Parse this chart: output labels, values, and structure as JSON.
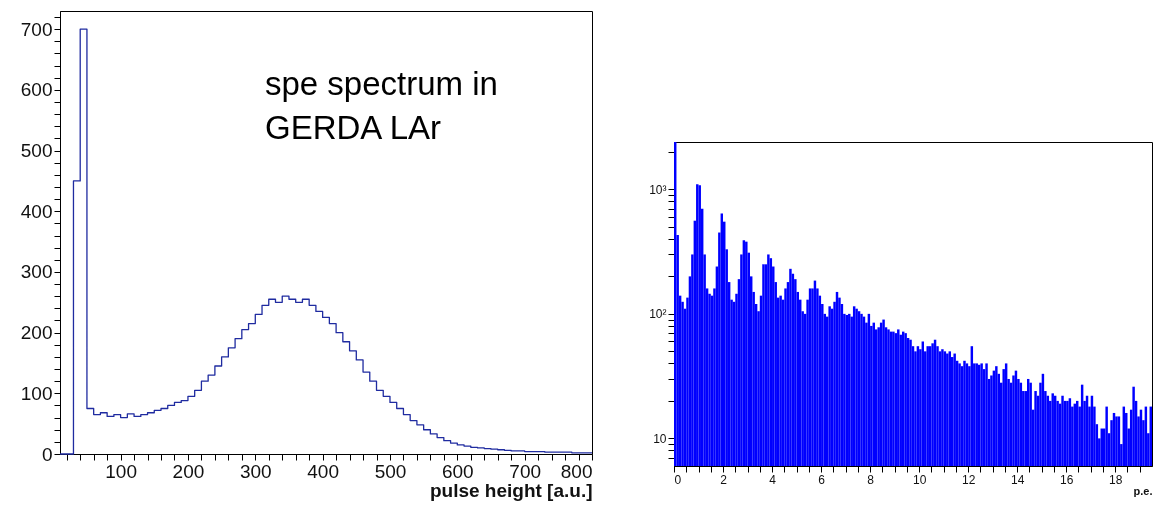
{
  "chart_data": [
    {
      "type": "histogram",
      "xlabel": "pulse height [a.u.]",
      "annotations": [
        "spe spectrum in\nGERDA LAr"
      ],
      "color": "#1f2ba0",
      "line_style": "solid",
      "bins": [
        10,
        20,
        30,
        40,
        50,
        60,
        70,
        80,
        90,
        100,
        110,
        120,
        130,
        140,
        150,
        160,
        170,
        180,
        190,
        200,
        210,
        220,
        230,
        240,
        250,
        260,
        270,
        280,
        290,
        300,
        310,
        320,
        330,
        340,
        350,
        360,
        370,
        380,
        390,
        400,
        410,
        420,
        430,
        440,
        450,
        460,
        470,
        480,
        490,
        500,
        510,
        520,
        530,
        540,
        550,
        560,
        570,
        580,
        590,
        600,
        610,
        620,
        630,
        640,
        650,
        660,
        670,
        680,
        690,
        700,
        710,
        720,
        730,
        740,
        750,
        760,
        770,
        780,
        790,
        800
      ],
      "values": [
        0,
        0,
        450,
        700,
        75,
        65,
        68,
        62,
        65,
        60,
        66,
        62,
        65,
        68,
        72,
        75,
        80,
        85,
        88,
        95,
        105,
        120,
        130,
        145,
        160,
        175,
        190,
        205,
        215,
        230,
        245,
        255,
        250,
        260,
        255,
        250,
        255,
        245,
        235,
        225,
        215,
        200,
        185,
        170,
        155,
        135,
        120,
        105,
        95,
        85,
        75,
        65,
        55,
        48,
        40,
        33,
        27,
        22,
        18,
        15,
        13,
        11,
        10,
        9,
        8,
        7,
        6,
        5,
        5,
        4,
        4,
        4,
        3,
        3,
        3,
        3,
        2,
        2,
        2
      ],
      "xlim": [
        10,
        800
      ],
      "ylim": [
        0,
        730
      ],
      "xticks": [
        {
          "value": 20,
          "label": null
        },
        {
          "value": 40,
          "label": null
        },
        {
          "value": 60,
          "label": null
        },
        {
          "value": 80,
          "label": null
        },
        100,
        {
          "value": 120,
          "label": null
        },
        {
          "value": 140,
          "label": null
        },
        {
          "value": 160,
          "label": null
        },
        {
          "value": 180,
          "label": null
        },
        200,
        {
          "value": 220,
          "label": null
        },
        {
          "value": 240,
          "label": null
        },
        {
          "value": 260,
          "label": null
        },
        {
          "value": 280,
          "label": null
        },
        300,
        {
          "value": 320,
          "label": null
        },
        {
          "value": 340,
          "label": null
        },
        {
          "value": 360,
          "label": null
        },
        {
          "value": 380,
          "label": null
        },
        400,
        {
          "value": 420,
          "label": null
        },
        {
          "value": 440,
          "label": null
        },
        {
          "value": 460,
          "label": null
        },
        {
          "value": 480,
          "label": null
        },
        500,
        {
          "value": 520,
          "label": null
        },
        {
          "value": 540,
          "label": null
        },
        {
          "value": 560,
          "label": null
        },
        {
          "value": 580,
          "label": null
        },
        600,
        {
          "value": 620,
          "label": null
        },
        {
          "value": 640,
          "label": null
        },
        {
          "value": 660,
          "label": null
        },
        {
          "value": 680,
          "label": null
        },
        700,
        {
          "value": 720,
          "label": null
        },
        {
          "value": 740,
          "label": null
        },
        {
          "value": 760,
          "label": null
        },
        {
          "value": 780,
          "label": null
        },
        800
      ],
      "yticks": [
        0,
        {
          "value": 20,
          "label": null
        },
        {
          "value": 40,
          "label": null
        },
        {
          "value": 60,
          "label": null
        },
        {
          "value": 80,
          "label": null
        },
        100,
        {
          "value": 120,
          "label": null
        },
        {
          "value": 140,
          "label": null
        },
        {
          "value": 160,
          "label": null
        },
        {
          "value": 180,
          "label": null
        },
        200,
        {
          "value": 220,
          "label": null
        },
        {
          "value": 240,
          "label": null
        },
        {
          "value": 260,
          "label": null
        },
        {
          "value": 280,
          "label": null
        },
        300,
        {
          "value": 320,
          "label": null
        },
        {
          "value": 340,
          "label": null
        },
        {
          "value": 360,
          "label": null
        },
        {
          "value": 380,
          "label": null
        },
        400,
        {
          "value": 420,
          "label": null
        },
        {
          "value": 440,
          "label": null
        },
        {
          "value": 460,
          "label": null
        },
        {
          "value": 480,
          "label": null
        },
        500,
        {
          "value": 520,
          "label": null
        },
        {
          "value": 540,
          "label": null
        },
        {
          "value": 560,
          "label": null
        },
        {
          "value": 580,
          "label": null
        },
        600,
        {
          "value": 620,
          "label": null
        },
        {
          "value": 640,
          "label": null
        },
        {
          "value": 660,
          "label": null
        },
        {
          "value": 680,
          "label": null
        },
        700,
        {
          "value": 720,
          "label": null
        }
      ]
    },
    {
      "type": "histogram",
      "xlabel": "p.e.",
      "color": "#0000ff",
      "log": "y",
      "bins": [
        0,
        0.1,
        0.2,
        0.3,
        0.4,
        0.5,
        0.6,
        0.7,
        0.8,
        0.9,
        1,
        1.1,
        1.2,
        1.3,
        1.4,
        1.5,
        1.6,
        1.7,
        1.8,
        1.9,
        2,
        2.1,
        2.2,
        2.3,
        2.4,
        2.5,
        2.6,
        2.7,
        2.8,
        2.9,
        3,
        3.1,
        3.2,
        3.3,
        3.4,
        3.5,
        3.6,
        3.7,
        3.8,
        3.9,
        4,
        4.1,
        4.2,
        4.3,
        4.4,
        4.5,
        4.6,
        4.7,
        4.8,
        4.9,
        5,
        5.1,
        5.2,
        5.3,
        5.4,
        5.5,
        5.6,
        5.7,
        5.8,
        5.9,
        6,
        6.1,
        6.2,
        6.3,
        6.4,
        6.5,
        6.6,
        6.7,
        6.8,
        6.9,
        7,
        7.1,
        7.2,
        7.3,
        7.4,
        7.5,
        7.6,
        7.7,
        7.8,
        7.9,
        8,
        8.1,
        8.2,
        8.3,
        8.4,
        8.5,
        8.6,
        8.7,
        8.8,
        8.9,
        9,
        9.1,
        9.2,
        9.3,
        9.4,
        9.5,
        9.6,
        9.7,
        9.8,
        9.9,
        10,
        10.1,
        10.2,
        10.3,
        10.4,
        10.5,
        10.6,
        10.7,
        10.8,
        10.9,
        11,
        11.1,
        11.2,
        11.3,
        11.4,
        11.5,
        11.6,
        11.7,
        11.8,
        11.9,
        12,
        12.1,
        12.2,
        12.3,
        12.4,
        12.5,
        12.6,
        12.7,
        12.8,
        12.9,
        13,
        13.1,
        13.2,
        13.3,
        13.4,
        13.5,
        13.6,
        13.7,
        13.8,
        13.9,
        14,
        14.1,
        14.2,
        14.3,
        14.4,
        14.5,
        14.6,
        14.7,
        14.8,
        14.9,
        15,
        15.1,
        15.2,
        15.3,
        15.4,
        15.5,
        15.6,
        15.7,
        15.8,
        15.9,
        16,
        16.1,
        16.2,
        16.3,
        16.4,
        16.5,
        16.6,
        16.7,
        16.8,
        16.9,
        17,
        17.1,
        17.2,
        17.3,
        17.4,
        17.5,
        17.6,
        17.7,
        17.8,
        17.9,
        18,
        18.1,
        18.2,
        18.3,
        18.4,
        18.5,
        18.6,
        18.7,
        18.8,
        18.9,
        19,
        19.1,
        19.2,
        19.3,
        19.4,
        19.5
      ],
      "values": [
        2400,
        430,
        140,
        125,
        110,
        135,
        200,
        300,
        560,
        1100,
        1080,
        700,
        300,
        160,
        145,
        140,
        160,
        240,
        450,
        640,
        550,
        330,
        180,
        130,
        125,
        145,
        190,
        300,
        390,
        380,
        310,
        200,
        150,
        120,
        105,
        140,
        250,
        250,
        300,
        280,
        240,
        180,
        135,
        140,
        130,
        160,
        180,
        230,
        210,
        190,
        150,
        130,
        105,
        100,
        130,
        160,
        160,
        185,
        160,
        140,
        120,
        100,
        95,
        115,
        110,
        125,
        150,
        135,
        120,
        100,
        98,
        100,
        95,
        115,
        110,
        105,
        100,
        95,
        85,
        100,
        80,
        85,
        75,
        78,
        85,
        90,
        78,
        75,
        72,
        72,
        70,
        75,
        68,
        72,
        70,
        64,
        62,
        55,
        50,
        55,
        52,
        60,
        50,
        55,
        55,
        58,
        62,
        55,
        50,
        52,
        50,
        48,
        50,
        45,
        48,
        42,
        40,
        38,
        42,
        40,
        38,
        55,
        40,
        40,
        39,
        40,
        36,
        40,
        30,
        32,
        35,
        38,
        33,
        28,
        36,
        40,
        30,
        28,
        32,
        35,
        30,
        28,
        24,
        24,
        30,
        28,
        17,
        24,
        22,
        28,
        33,
        24,
        22,
        20,
        23,
        22,
        20,
        19,
        22,
        20,
        20,
        21,
        18,
        19,
        20,
        18,
        27,
        20,
        22,
        18,
        22,
        18,
        13,
        10,
        12,
        12,
        18,
        11,
        14,
        16,
        15,
        15,
        9,
        18,
        16,
        12,
        17,
        26,
        20,
        15,
        17,
        14,
        18,
        11,
        18
      ],
      "xlim": [
        0,
        19.5
      ],
      "ylim": [
        6,
        2400
      ],
      "xticks": [
        0,
        {
          "value": 0.5,
          "label": null
        },
        {
          "value": 1,
          "label": null
        },
        {
          "value": 1.5,
          "label": null
        },
        2,
        {
          "value": 2.5,
          "label": null
        },
        {
          "value": 3,
          "label": null
        },
        {
          "value": 3.5,
          "label": null
        },
        4,
        {
          "value": 4.5,
          "label": null
        },
        {
          "value": 5,
          "label": null
        },
        {
          "value": 5.5,
          "label": null
        },
        6,
        {
          "value": 6.5,
          "label": null
        },
        {
          "value": 7,
          "label": null
        },
        {
          "value": 7.5,
          "label": null
        },
        8,
        {
          "value": 8.5,
          "label": null
        },
        {
          "value": 9,
          "label": null
        },
        {
          "value": 9.5,
          "label": null
        },
        10,
        {
          "value": 10.5,
          "label": null
        },
        {
          "value": 11,
          "label": null
        },
        {
          "value": 11.5,
          "label": null
        },
        12,
        {
          "value": 12.5,
          "label": null
        },
        {
          "value": 13,
          "label": null
        },
        {
          "value": 13.5,
          "label": null
        },
        14,
        {
          "value": 14.5,
          "label": null
        },
        {
          "value": 15,
          "label": null
        },
        {
          "value": 15.5,
          "label": null
        },
        16,
        {
          "value": 16.5,
          "label": null
        },
        {
          "value": 17,
          "label": null
        },
        {
          "value": 17.5,
          "label": null
        },
        18,
        {
          "value": 18.5,
          "label": null
        },
        {
          "value": 19,
          "label": null
        }
      ],
      "yticks": [
        {
          "value": 7,
          "label": null
        },
        {
          "value": 8,
          "label": null
        },
        {
          "value": 9,
          "label": null
        },
        10,
        {
          "value": 20,
          "label": null
        },
        {
          "value": 30,
          "label": null
        },
        {
          "value": 40,
          "label": null
        },
        {
          "value": 50,
          "label": null
        },
        {
          "value": 60,
          "label": null
        },
        {
          "value": 70,
          "label": null
        },
        {
          "value": 80,
          "label": null
        },
        {
          "value": 90,
          "label": null
        },
        {
          "value": 100,
          "label": "10²"
        },
        {
          "value": 200,
          "label": null
        },
        {
          "value": 300,
          "label": null
        },
        {
          "value": 400,
          "label": null
        },
        {
          "value": 500,
          "label": null
        },
        {
          "value": 600,
          "label": null
        },
        {
          "value": 700,
          "label": null
        },
        {
          "value": 800,
          "label": null
        },
        {
          "value": 900,
          "label": null
        },
        {
          "value": 1000,
          "label": "10³"
        },
        {
          "value": 2000,
          "label": null
        }
      ]
    }
  ]
}
